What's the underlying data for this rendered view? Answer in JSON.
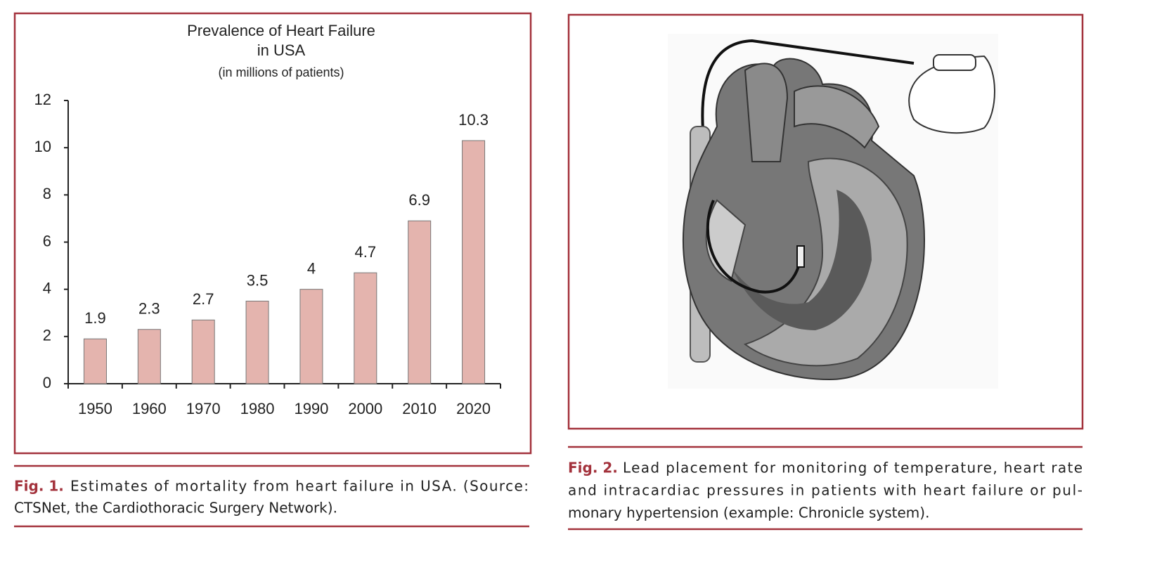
{
  "chart_data": {
    "type": "bar",
    "title": [
      "Prevalence of Heart Failure",
      "in USA"
    ],
    "subtitle": "(in millions of patients)",
    "categories": [
      "1950",
      "1960",
      "1970",
      "1980",
      "1990",
      "2000",
      "2010",
      "2020"
    ],
    "values": [
      1.9,
      2.3,
      2.7,
      3.5,
      4,
      4.7,
      6.9,
      10.3
    ],
    "color": "#e4b4ae",
    "ylim": [
      0,
      12
    ],
    "yticks": [
      0,
      2,
      4,
      6,
      8,
      10,
      12
    ],
    "grid": false
  },
  "captions": [
    {
      "label": "Fig. 1.",
      "lines": [
        "Estimates of mortality from heart failure in USA. (Source:",
        "CTSNet, the Cardiothoracic Surgery Network)."
      ]
    },
    {
      "label": "Fig. 2.",
      "lines": [
        "Lead placement for monitoring of temperature, heart rate",
        "and intracardiac pressures in patients with heart failure or pul-",
        "monary hypertension (example: Chronicle system)."
      ]
    }
  ]
}
